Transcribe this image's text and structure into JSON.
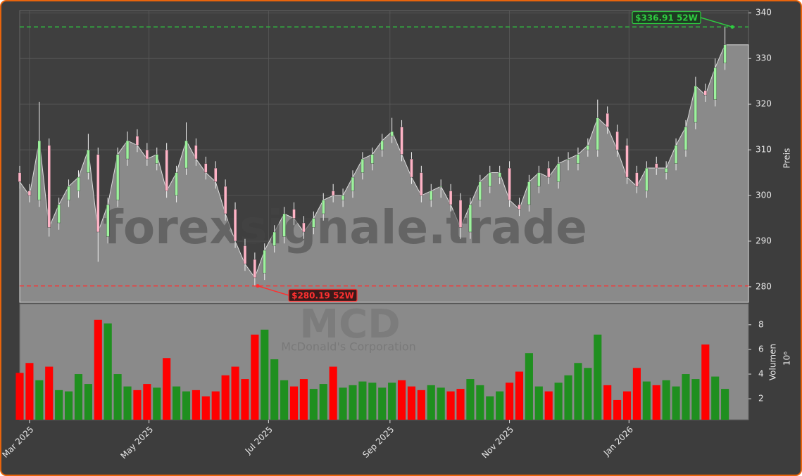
{
  "chart_data": {
    "type": "candlestick",
    "watermark": "forexsignale.trade",
    "symbol": "MCD",
    "company": "McDonald's Corporation",
    "y_label": "Preis",
    "x": [
      0,
      5,
      10,
      15,
      20,
      25,
      30,
      35,
      40,
      45,
      50,
      55,
      60,
      65,
      70,
      75,
      80,
      85,
      90,
      95,
      100,
      105,
      110,
      115,
      120,
      125,
      130,
      135,
      140,
      145,
      150,
      155,
      160,
      165,
      170,
      175,
      180,
      185,
      190,
      195,
      200,
      205,
      210,
      215,
      220,
      225,
      230,
      235,
      240,
      245,
      250,
      255,
      260,
      265,
      270,
      275,
      280,
      285,
      290,
      295,
      300,
      305,
      310,
      315,
      320,
      325,
      330,
      335,
      340,
      345,
      350,
      355,
      360
    ],
    "open": [
      305,
      301,
      299,
      311,
      294,
      299,
      301,
      305,
      309,
      291,
      299,
      308,
      313,
      310,
      307,
      310,
      300,
      306,
      311,
      307,
      306,
      302,
      297,
      289,
      286,
      283,
      289,
      291,
      297,
      294,
      293,
      296,
      301,
      299,
      301,
      305,
      307,
      310,
      313,
      315,
      308,
      305,
      299,
      302,
      301,
      299,
      292,
      299,
      302,
      304,
      306,
      298,
      298,
      302,
      306,
      303,
      308,
      307,
      310,
      310,
      318,
      314,
      311,
      305,
      301,
      307,
      305,
      307,
      310,
      316,
      323,
      321,
      329
    ],
    "high": [
      306.5,
      302.5,
      320.5,
      312.5,
      299.5,
      303.5,
      305.5,
      313.5,
      310.5,
      299.5,
      310.5,
      314,
      314.5,
      311.5,
      310.5,
      311.5,
      306.5,
      316,
      312.5,
      308.5,
      307.5,
      303.5,
      298.5,
      290.5,
      287.5,
      289.5,
      293.5,
      297.5,
      298.5,
      295.5,
      296.5,
      300.5,
      302.5,
      301.5,
      305.5,
      309.5,
      310.5,
      313.5,
      317,
      316.5,
      309.5,
      306.5,
      302.5,
      303.5,
      302.5,
      300.5,
      299.5,
      304.5,
      306.5,
      306.5,
      307.5,
      299.5,
      304.5,
      306.5,
      307.5,
      308.5,
      309.5,
      310.5,
      312.5,
      321,
      319.5,
      315.5,
      312.5,
      306.5,
      307.5,
      308.5,
      307.5,
      312.5,
      316.5,
      326,
      324.5,
      330,
      336.91
    ],
    "low": [
      301.5,
      298.5,
      297.5,
      291,
      292.5,
      297.5,
      299.5,
      303.5,
      285.5,
      289.5,
      297.5,
      306.5,
      309.5,
      306.5,
      305.5,
      299.5,
      298.5,
      304.5,
      306.5,
      303.5,
      301.5,
      294.5,
      288.5,
      283.5,
      280.19,
      281.5,
      287.5,
      289.5,
      293.5,
      290.5,
      291.5,
      294.5,
      298.5,
      297.5,
      299.5,
      303.5,
      305.5,
      308.5,
      311.5,
      307.5,
      302.5,
      298.5,
      297.5,
      299.5,
      296.5,
      290.5,
      290.5,
      297.5,
      300.5,
      302.5,
      297.5,
      295.5,
      296.5,
      300.5,
      302.5,
      301.5,
      305.5,
      305.5,
      308.5,
      308.5,
      313.5,
      308.5,
      302.5,
      300.5,
      299.5,
      304.5,
      303.5,
      305.5,
      308.5,
      314.5,
      320.5,
      319.5,
      327.5
    ],
    "close": [
      303,
      300,
      312,
      293,
      298,
      302,
      304,
      310,
      292,
      298,
      309,
      312,
      311,
      308,
      309,
      301,
      305,
      312,
      308,
      305,
      303,
      296,
      290,
      285,
      282,
      288,
      292,
      296,
      295,
      292,
      295,
      299,
      300,
      300,
      304,
      308,
      309,
      312,
      314,
      309,
      304,
      300,
      301,
      302,
      298,
      293,
      298,
      303,
      305,
      305,
      299,
      297,
      303,
      305,
      304,
      307,
      308,
      309,
      311,
      317,
      315,
      310,
      304,
      302,
      306,
      306,
      306,
      311,
      315,
      324,
      322,
      328,
      333
    ],
    "up_color": "#9df29d",
    "down_color": "#ffb3c6",
    "area_color": "#8a8a8a",
    "xlim": [
      0,
      372
    ],
    "xticks": [
      {
        "value": 5,
        "label": "Mar 2025"
      },
      {
        "value": 66,
        "label": "May 2025"
      },
      {
        "value": 127,
        "label": "Jul 2025"
      },
      {
        "value": 189,
        "label": "Sep 2025"
      },
      {
        "value": 250,
        "label": "Nov 2025"
      },
      {
        "value": 311,
        "label": "Jan 2026"
      }
    ],
    "ylim": [
      276.6,
      340.5
    ],
    "yticks": [
      280,
      290,
      300,
      310,
      320,
      330,
      340
    ],
    "grid": true,
    "annotations": [
      {
        "value": 336.91,
        "text": "$336.91 52W",
        "color": "#2ecc40"
      },
      {
        "value": 280.19,
        "text": "$280.19 52W",
        "color": "#ff3030"
      }
    ],
    "volume": {
      "label": "Volumen",
      "scale_label": "10⁶",
      "up_color": "#1f8f1f",
      "down_color": "#ff0000",
      "ylim": [
        0.3,
        9.7
      ],
      "yticks": [
        2,
        4,
        6,
        8
      ],
      "values": [
        4.1,
        4.9,
        3.5,
        4.6,
        2.7,
        2.6,
        4.0,
        3.2,
        8.4,
        8.1,
        4.0,
        3.0,
        2.7,
        3.2,
        2.9,
        5.3,
        3.0,
        2.6,
        2.7,
        2.2,
        2.6,
        3.9,
        4.6,
        3.6,
        7.2,
        7.6,
        5.2,
        3.5,
        3.0,
        3.6,
        2.8,
        3.2,
        4.6,
        2.9,
        3.1,
        3.4,
        3.3,
        2.9,
        3.3,
        3.5,
        3.0,
        2.7,
        3.1,
        2.9,
        2.6,
        2.8,
        3.6,
        3.1,
        2.2,
        2.6,
        3.3,
        4.2,
        5.7,
        3.0,
        2.6,
        3.3,
        3.9,
        4.9,
        4.5,
        7.2,
        3.1,
        1.9,
        2.6,
        4.5,
        3.4,
        3.1,
        3.5,
        3.0,
        4.0,
        3.6,
        6.4,
        3.8,
        2.8
      ]
    }
  }
}
